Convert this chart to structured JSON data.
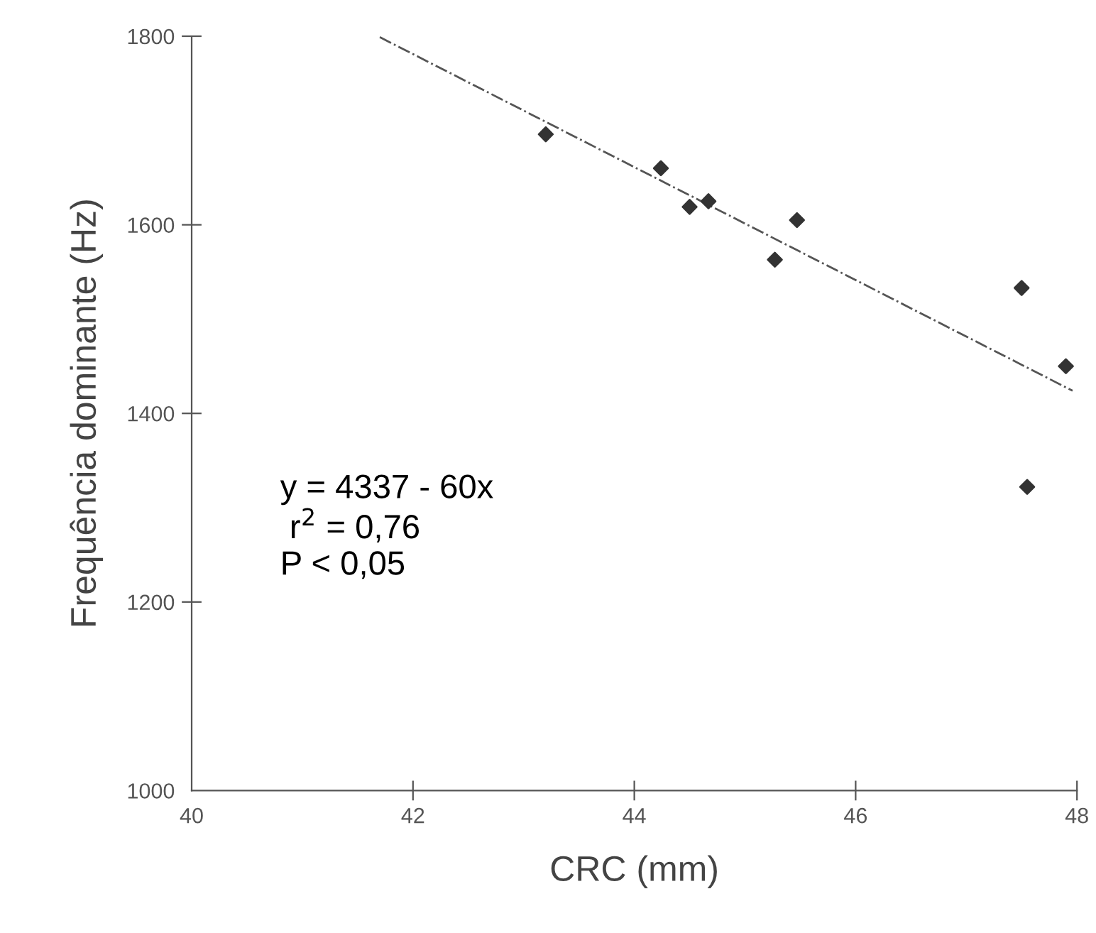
{
  "chart_data": {
    "type": "scatter",
    "xlabel": "CRC (mm)",
    "ylabel": "Frequência dominante (Hz)",
    "xlim": [
      40,
      48
    ],
    "xticks": [
      40,
      42,
      44,
      46,
      48
    ],
    "ylim": [
      1000,
      1800
    ],
    "yticks": [
      1000,
      1200,
      1400,
      1600,
      1800
    ],
    "grid": false,
    "marker": "diamond",
    "series": [
      {
        "color": "#333333",
        "x": [
          43.2,
          44.24,
          44.5,
          44.67,
          45.27,
          45.47,
          47.5,
          47.9,
          47.55
        ],
        "values": [
          1696,
          1660,
          1619,
          1625,
          1563,
          1605,
          1533,
          1450,
          1322
        ]
      },
      {
        "type": "line",
        "color": "#555555",
        "line_style": "dashdot",
        "marker": "none",
        "x": [
          41.7,
          47.96
        ],
        "values": [
          1799,
          1424
        ]
      }
    ],
    "annotations": [
      "y = 4337 - 60x\n r$^{2}$ = 0,76\nP < 0,05"
    ]
  }
}
